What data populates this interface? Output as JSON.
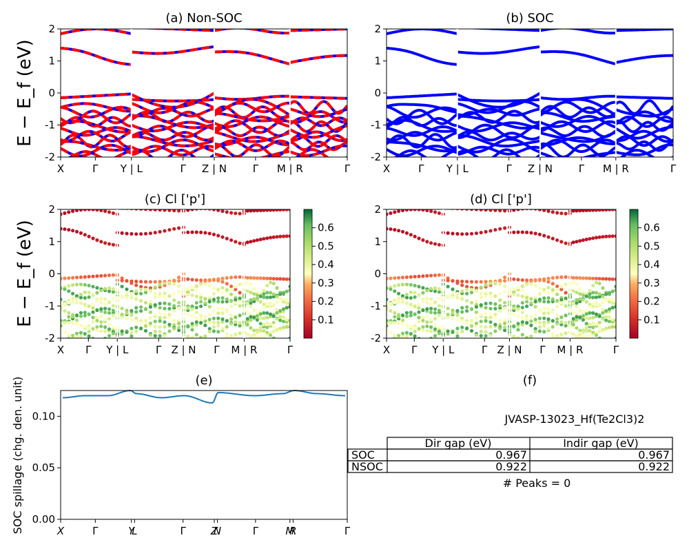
{
  "chart_data": [
    {
      "id": "a",
      "type": "line",
      "title": "(a) Non-SOC",
      "ylabel": "E − E_f (eV)",
      "ylim": [
        -2,
        2
      ],
      "yticks": [
        -2,
        -1,
        0,
        1,
        2
      ],
      "xtick_labels": [
        "X",
        "Γ",
        "Y | L",
        "Γ",
        "Z | N",
        "Γ",
        "M | R",
        "Γ"
      ],
      "segments": [
        "X–Γ–Y",
        "L–Γ–Z",
        "N–Γ–M",
        "R–Γ"
      ],
      "series": [
        {
          "style": "red dashed over blue",
          "values_upper_bands_eV": [
            1.85,
            1.4,
            1.3,
            1.2,
            1.2,
            1.3,
            1.0,
            1.15
          ]
        },
        {
          "values_near_fermi_eV": [
            -0.15,
            -0.1,
            0.0,
            -0.2,
            -0.15,
            -0.1,
            -0.15,
            -0.15
          ]
        }
      ]
    },
    {
      "id": "b",
      "type": "line",
      "title": "(b) SOC",
      "ylim": [
        -2,
        2
      ],
      "yticks": [
        -2,
        -1,
        0,
        1,
        2
      ],
      "xtick_labels": [
        "X",
        "Γ",
        "Y | L",
        "Γ",
        "Z | N",
        "Γ",
        "M | R",
        "Γ"
      ]
    },
    {
      "id": "c",
      "type": "scatter",
      "title": "(c)  Cl ['p']",
      "ylabel": "E − E_f (eV)",
      "ylim": [
        -2,
        2
      ],
      "yticks": [
        -2,
        -1,
        0,
        1,
        2
      ],
      "xtick_labels": [
        "X",
        "Γ",
        "Y | L",
        "Γ",
        "Z | N",
        "Γ",
        "M | R",
        "Γ"
      ],
      "colorbar_ticks": [
        "0.1",
        "0.2",
        "0.3",
        "0.4",
        "0.5",
        "0.6"
      ],
      "colorbar_range": [
        0,
        0.7
      ]
    },
    {
      "id": "d",
      "type": "scatter",
      "title": "(d) Cl ['p']",
      "ylim": [
        -2,
        2
      ],
      "yticks": [
        -2,
        -1,
        0,
        1,
        2
      ],
      "xtick_labels": [
        "X",
        "Γ",
        "Y | L",
        "Γ",
        "Z | N",
        "Γ",
        "M | R",
        "Γ"
      ],
      "colorbar_ticks": [
        "0.1",
        "0.2",
        "0.3",
        "0.4",
        "0.5",
        "0.6"
      ],
      "colorbar_range": [
        0,
        0.7
      ]
    },
    {
      "id": "e",
      "type": "line",
      "title": "(e)",
      "ylabel": "SOC spillage (chg. den. unit)",
      "ylim": [
        0,
        0.125
      ],
      "yticks": [
        "0.00",
        "0.05",
        "0.10"
      ],
      "xtick_labels": [
        "X",
        "Γ",
        "Y",
        "L",
        "Γ",
        "Z",
        "N",
        "Γ",
        "M",
        "R",
        "Γ"
      ],
      "series": [
        {
          "values": [
            0.118,
            0.12,
            0.12,
            0.125,
            0.122,
            0.118,
            0.12,
            0.113,
            0.123,
            0.12,
            0.122,
            0.125,
            0.122,
            0.12
          ]
        }
      ]
    }
  ],
  "panel_f": {
    "title": "(f)",
    "material": "JVASP-13023_Hf(Te2Cl3)2",
    "table": {
      "headers": [
        "",
        "Dir gap (eV)",
        "Indir gap (eV)"
      ],
      "rows": [
        [
          "SOC",
          "0.967",
          "0.967"
        ],
        [
          "NSOC",
          "0.922",
          "0.922"
        ]
      ]
    },
    "peaks": "# Peaks = 0"
  },
  "colors": {
    "nsoc_red": "#ff0000",
    "soc_blue": "#0000ff",
    "spillage_line": "#1f77b4"
  }
}
